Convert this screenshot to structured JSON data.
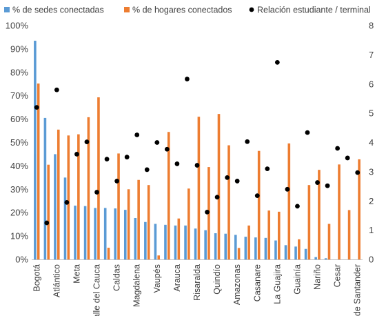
{
  "chart_data": {
    "type": "bar",
    "categories": [
      "Bogotá",
      "",
      "Atlántico",
      "",
      "Meta",
      "",
      "Valle del Cauca",
      "",
      "Caldas",
      "",
      "Magdalena",
      "",
      "Vaupés",
      "",
      "Arauca",
      "",
      "Risaralda",
      "",
      "Quindío",
      "",
      "Amazonas",
      "",
      "Casanare",
      "",
      "La Guajira",
      "",
      "Guainía",
      "",
      "Nariño",
      "",
      "Cesar",
      "",
      "N. de Santander"
    ],
    "series": [
      {
        "name": "% de sedes conectadas",
        "color": "#5B9BD5",
        "axis": "left",
        "values": [
          93.5,
          60.5,
          45,
          35,
          23,
          22.8,
          22,
          22,
          21.8,
          21.2,
          17.7,
          16,
          15.2,
          14.8,
          14.5,
          14.5,
          13.2,
          12.5,
          11.2,
          11,
          10.5,
          9.7,
          9.4,
          9.2,
          8.1,
          6.1,
          5.5,
          4.5,
          1,
          0.5,
          0,
          0,
          0
        ]
      },
      {
        "name": "% de hogares conectados",
        "color": "#ED7D31",
        "axis": "left",
        "values": [
          75.2,
          40.5,
          55.5,
          53,
          53.5,
          60.8,
          69.3,
          5,
          45.3,
          30,
          34,
          31.8,
          1.7,
          54.5,
          17.5,
          30.3,
          61,
          39.5,
          62.2,
          48.8,
          4.9,
          14.5,
          46.4,
          20.9,
          20.4,
          49.6,
          8.6,
          31.8,
          38.3,
          15.2,
          40.6,
          21.1,
          42.8
        ]
      },
      {
        "name": "Relación estudiante / terminal",
        "type": "scatter",
        "color": "#000000",
        "axis": "right",
        "values": [
          5.2,
          1.25,
          5.8,
          1.95,
          3.6,
          4.02,
          2.3,
          3.43,
          2.68,
          3.5,
          4.26,
          3.07,
          4.0,
          3.77,
          3.27,
          6.17,
          3.22,
          1.62,
          2.13,
          2.8,
          2.68,
          4.03,
          2.18,
          3.1,
          6.74,
          2.4,
          1.82,
          4.34,
          2.63,
          2.52,
          3.8,
          3.47,
          2.97
        ]
      }
    ],
    "legend_position": "top",
    "y_left": {
      "ticks": [
        "0%",
        "10%",
        "20%",
        "30%",
        "40%",
        "50%",
        "60%",
        "70%",
        "80%",
        "90%",
        "100%"
      ],
      "range": [
        0,
        100
      ]
    },
    "y_right": {
      "ticks": [
        "0",
        "1",
        "2",
        "3",
        "4",
        "5",
        "6",
        "7",
        "8"
      ],
      "range": [
        0,
        8
      ]
    },
    "grid": false
  }
}
